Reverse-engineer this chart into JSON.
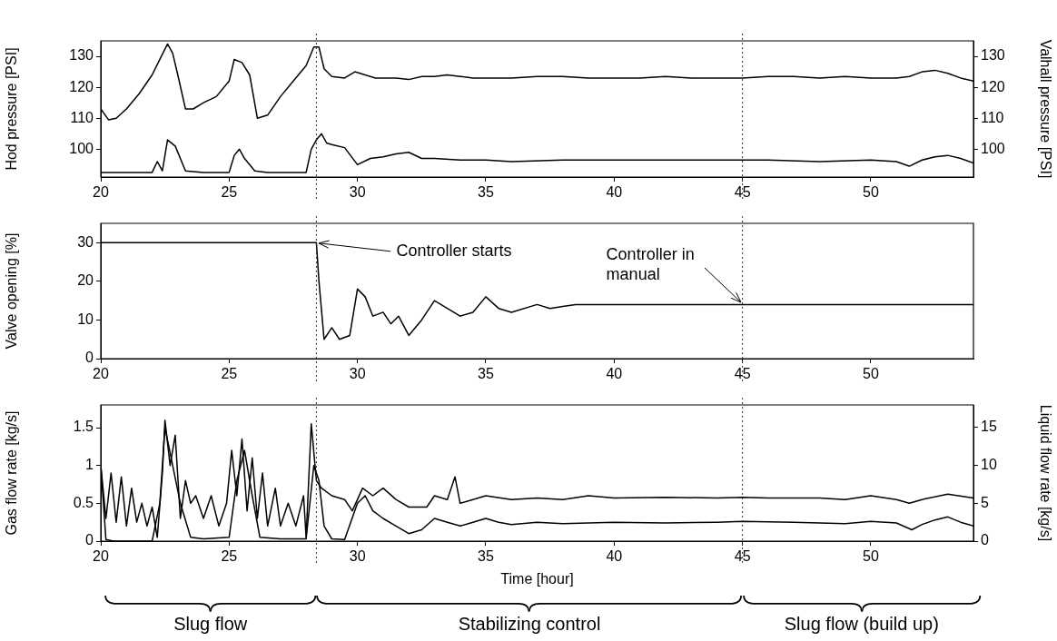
{
  "chart_data": [
    {
      "type": "line",
      "ylabel": "Hod pressure [PSI]",
      "y2label": "Valhall pressure [PSI]",
      "xlim": [
        20,
        54
      ],
      "xticks": [
        20,
        25,
        30,
        35,
        40,
        45,
        50
      ],
      "ylim": [
        91,
        135
      ],
      "yticks": [
        100,
        110,
        120,
        130
      ],
      "y2lim": [
        91,
        135
      ],
      "y2ticks": [
        100,
        110,
        120,
        130
      ],
      "line_style": "solid",
      "ref_lines": [
        {
          "axis": "x",
          "value": 28.4,
          "line_style": "dotted"
        },
        {
          "axis": "x",
          "value": 45,
          "line_style": "dotted"
        }
      ],
      "series": [
        {
          "color": "#000000",
          "x": [
            20,
            20.3,
            20.6,
            21,
            21.5,
            22,
            22.3,
            22.6,
            22.8,
            23,
            23.3,
            23.6,
            24,
            24.5,
            25,
            25.2,
            25.5,
            25.8,
            26.1,
            26.5,
            27,
            27.5,
            28,
            28.3,
            28.5,
            28.7,
            29,
            29.5,
            29.9,
            30.3,
            30.7,
            31,
            31.5,
            32,
            32.5,
            33,
            33.5,
            34,
            34.5,
            35,
            36,
            37,
            38,
            39,
            40,
            41,
            42,
            43,
            44,
            45,
            46,
            47,
            48,
            49,
            50,
            51,
            51.5,
            52,
            52.5,
            53,
            53.5,
            54
          ],
          "values": [
            113,
            109.5,
            110,
            113,
            118,
            124,
            129,
            134,
            131,
            124,
            113,
            113,
            115,
            117,
            122,
            129,
            128,
            124,
            110,
            111,
            117,
            122,
            127,
            133,
            133,
            126,
            123.5,
            123,
            125,
            124,
            123,
            123,
            123,
            122.5,
            123.5,
            123.5,
            124,
            123.5,
            123,
            123,
            123,
            123.5,
            123.5,
            123,
            123,
            123,
            123.5,
            123,
            123,
            123,
            123.5,
            123.5,
            123,
            123.5,
            123,
            123,
            123.5,
            125,
            125.5,
            124.5,
            123,
            122
          ]
        },
        {
          "color": "#000000",
          "axis": "y2",
          "x": [
            20,
            21,
            22,
            22.2,
            22.4,
            22.6,
            22.9,
            23.3,
            24,
            25,
            25.2,
            25.4,
            25.6,
            26,
            26.5,
            27,
            28,
            28.2,
            28.4,
            28.6,
            28.8,
            29,
            29.5,
            30,
            30.5,
            31,
            31.5,
            32,
            32.5,
            33,
            34,
            35,
            36,
            38,
            40,
            42,
            44,
            45,
            46,
            48,
            50,
            51,
            51.5,
            52,
            52.5,
            53,
            53.5,
            54
          ],
          "values": [
            92.5,
            92.5,
            92.5,
            96,
            93,
            103,
            101,
            93,
            92.5,
            92.5,
            98,
            100,
            97,
            93,
            92.5,
            92.5,
            92.5,
            100,
            103,
            105,
            102,
            101.5,
            100.5,
            95,
            97,
            97.5,
            98.5,
            99,
            97,
            97,
            96.5,
            96.5,
            96,
            96.5,
            96.5,
            96.5,
            96.5,
            96.5,
            96.5,
            96,
            96.5,
            96,
            94.5,
            96.5,
            97.5,
            98,
            97,
            95.5
          ]
        }
      ]
    },
    {
      "type": "line",
      "ylabel": "Valve opening [%]",
      "xlim": [
        20,
        54
      ],
      "xticks": [
        20,
        25,
        30,
        35,
        40,
        45,
        50
      ],
      "ylim": [
        0,
        35
      ],
      "yticks": [
        0,
        10,
        20,
        30
      ],
      "line_style": "solid",
      "ref_lines": [
        {
          "axis": "x",
          "value": 28.4,
          "line_style": "dotted"
        },
        {
          "axis": "x",
          "value": 45,
          "line_style": "dotted"
        }
      ],
      "annotations": [
        {
          "text": "Controller starts",
          "x": 28.4,
          "y": 30
        },
        {
          "text": "Controller in manual",
          "x": 45,
          "y": 14
        }
      ],
      "series": [
        {
          "color": "#000000",
          "x": [
            20,
            28.4,
            28.5,
            28.7,
            29,
            29.3,
            29.7,
            30,
            30.3,
            30.6,
            31,
            31.3,
            31.6,
            32,
            32.5,
            33,
            33.5,
            34,
            34.5,
            35,
            35.5,
            36,
            37,
            37.5,
            38,
            38.5,
            39,
            45,
            54
          ],
          "values": [
            30,
            30,
            20,
            5,
            8,
            5,
            6,
            18,
            16,
            11,
            12,
            9,
            11,
            6,
            10,
            15,
            13,
            11,
            12,
            16,
            13,
            12,
            14,
            13,
            13.5,
            14,
            14,
            14,
            14
          ]
        }
      ]
    },
    {
      "type": "line",
      "xlabel": "Time [hour]",
      "ylabel": "Gas flow rate [kg/s]",
      "y2label": "Liquid flow rate [kg/s]",
      "xlim": [
        20,
        54
      ],
      "xticks": [
        20,
        25,
        30,
        35,
        40,
        45,
        50
      ],
      "ylim": [
        0,
        1.8
      ],
      "yticks": [
        0,
        0.5,
        1,
        1.5
      ],
      "y2lim": [
        0,
        18
      ],
      "y2ticks": [
        0,
        5,
        10,
        15
      ],
      "line_style": "solid",
      "ref_lines": [
        {
          "axis": "x",
          "value": 28.4,
          "line_style": "dotted"
        },
        {
          "axis": "x",
          "value": 45,
          "line_style": "dotted"
        }
      ],
      "annotations": [
        "Slug flow",
        "Stabilizing control",
        "Slug flow (build up)"
      ],
      "series": [
        {
          "color": "#000000",
          "x": [
            20,
            20.2,
            20.4,
            20.6,
            20.8,
            21,
            21.2,
            21.4,
            21.6,
            21.8,
            22,
            22.2,
            22.4,
            22.5,
            22.7,
            22.9,
            23.1,
            23.3,
            23.5,
            23.7,
            24,
            24.3,
            24.6,
            24.9,
            25.1,
            25.3,
            25.5,
            25.7,
            25.9,
            26.1,
            26.3,
            26.5,
            26.8,
            27,
            27.3,
            27.6,
            27.9,
            28,
            28.2,
            28.4,
            28.6,
            29,
            29.5,
            29.8,
            30.2,
            30.6,
            31,
            31.5,
            32,
            32.7,
            33,
            33.5,
            33.8,
            34,
            34.5,
            35,
            36,
            37,
            38,
            39,
            40,
            42,
            44,
            45,
            46,
            48,
            49,
            50,
            51,
            51.5,
            52,
            53,
            54
          ],
          "values": [
            1,
            0.3,
            0.9,
            0.25,
            0.85,
            0.2,
            0.7,
            0.25,
            0.5,
            0.2,
            0.45,
            0.05,
            0.9,
            1.6,
            1,
            1.4,
            0.3,
            0.8,
            0.5,
            0.6,
            0.3,
            0.6,
            0.2,
            0.5,
            1.2,
            0.6,
            1.35,
            0.4,
            1.1,
            0.3,
            0.9,
            0.2,
            0.7,
            0.2,
            0.5,
            0.2,
            0.6,
            0.05,
            1.55,
            0.8,
            0.7,
            0.6,
            0.55,
            0.4,
            0.7,
            0.6,
            0.7,
            0.55,
            0.45,
            0.45,
            0.6,
            0.55,
            0.85,
            0.5,
            0.55,
            0.6,
            0.55,
            0.57,
            0.55,
            0.6,
            0.57,
            0.58,
            0.57,
            0.58,
            0.57,
            0.57,
            0.55,
            0.6,
            0.55,
            0.5,
            0.55,
            0.62,
            0.57
          ]
        },
        {
          "color": "#000000",
          "axis": "y2",
          "x": [
            20,
            20.2,
            20.5,
            22,
            22.3,
            22.5,
            22.8,
            23.1,
            23.5,
            24,
            25,
            25.3,
            25.6,
            25.9,
            26.2,
            27,
            28,
            28.3,
            28.5,
            28.7,
            29,
            29.5,
            30,
            30.3,
            30.6,
            31,
            31.5,
            32,
            32.5,
            33,
            33.5,
            34,
            34.5,
            35,
            35.5,
            36,
            37,
            38,
            40,
            42,
            44,
            45,
            47,
            49,
            50,
            51,
            51.6,
            52,
            52.5,
            53,
            53.5,
            54
          ],
          "values": [
            10,
            0.2,
            0,
            0,
            5,
            15,
            10,
            5,
            0.5,
            0.3,
            0.5,
            8,
            12,
            6,
            0.5,
            0.3,
            0.3,
            10,
            8,
            2,
            0.3,
            0.2,
            5,
            6,
            4,
            3,
            2,
            1,
            1.5,
            3,
            2.5,
            2,
            2.5,
            3,
            2.5,
            2.2,
            2.5,
            2.3,
            2.5,
            2.4,
            2.5,
            2.6,
            2.5,
            2.3,
            2.6,
            2.4,
            1.5,
            2.2,
            2.8,
            3.2,
            2.5,
            2
          ]
        }
      ]
    }
  ]
}
